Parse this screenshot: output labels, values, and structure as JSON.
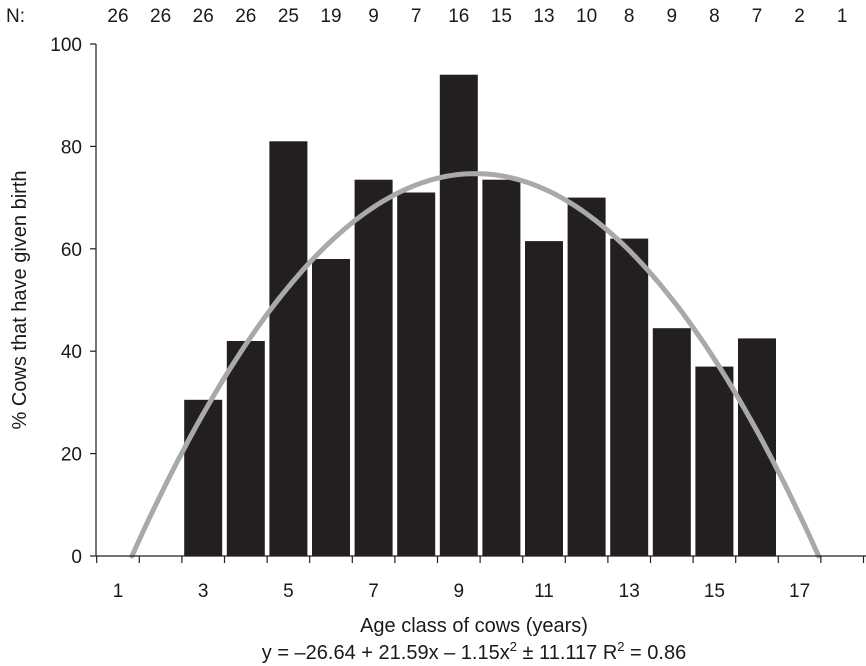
{
  "chart_data": {
    "type": "bar",
    "n_prefix": "N:",
    "categories": [
      1,
      2,
      3,
      4,
      5,
      6,
      7,
      8,
      9,
      10,
      11,
      12,
      13,
      14,
      15,
      16,
      17,
      18
    ],
    "n_values": [
      "26",
      "26",
      "26",
      "26",
      "25",
      "19",
      "9",
      "7",
      "16",
      "15",
      "13",
      "10",
      "8",
      "9",
      "8",
      "7",
      "2",
      "1"
    ],
    "values": [
      0,
      0,
      30.5,
      42,
      81,
      58,
      73.5,
      71,
      94,
      73.5,
      61.5,
      70,
      62,
      44.5,
      37,
      42.5,
      0,
      0
    ],
    "x_tick_labels": [
      "1",
      "3",
      "5",
      "7",
      "9",
      "11",
      "13",
      "15",
      "17"
    ],
    "x_tick_values": [
      1,
      3,
      5,
      7,
      9,
      11,
      13,
      15,
      17
    ],
    "y_tick_labels": [
      "0",
      "20",
      "40",
      "60",
      "80",
      "100"
    ],
    "y_tick_values": [
      0,
      20,
      40,
      60,
      80,
      100
    ],
    "ylabel": "% Cows that have given birth",
    "xlabel": "Age class of cows (years)",
    "ylim": [
      0,
      100
    ],
    "fit_curve": {
      "a": -26.64,
      "b": 21.59,
      "c": -1.15
    },
    "equation": {
      "part1": "y = –26.64 + 21.59x – 1.15x",
      "sup1": "2",
      "part2": " ± 11.117   R",
      "sup2": "2",
      "part3": " = 0.86"
    },
    "colors": {
      "bar": "#231f20",
      "curve": "#a7a9ac",
      "axis": "#231f20"
    }
  }
}
